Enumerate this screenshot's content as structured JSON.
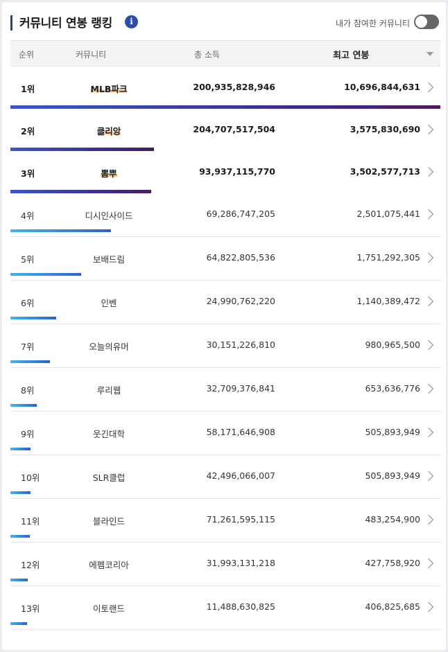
{
  "header": {
    "title": "커뮤니티 연봉 랭킹",
    "info_icon": "info-icon",
    "toggle_label": "내가 참여한 커뮤니티",
    "toggle_on": false
  },
  "table": {
    "columns": {
      "rank": "순위",
      "community": "커뮤니티",
      "total_income": "총 소득",
      "top_salary": "최고 연봉"
    },
    "rows": [
      {
        "rank": "1위",
        "community": "MLB파크",
        "total_income": "200,935,828,946",
        "top_salary": "10,696,844,631",
        "bar_fraction": 1.0
      },
      {
        "rank": "2위",
        "community": "클리앙",
        "total_income": "204,707,517,504",
        "top_salary": "3,575,830,690",
        "bar_fraction": 0.334
      },
      {
        "rank": "3위",
        "community": "뽐뿌",
        "total_income": "93,937,115,770",
        "top_salary": "3,502,577,713",
        "bar_fraction": 0.327
      },
      {
        "rank": "4위",
        "community": "디시인사이드",
        "total_income": "69,286,747,205",
        "top_salary": "2,501,075,441",
        "bar_fraction": 0.234
      },
      {
        "rank": "5위",
        "community": "보배드림",
        "total_income": "64,822,805,536",
        "top_salary": "1,751,292,305",
        "bar_fraction": 0.164
      },
      {
        "rank": "6위",
        "community": "인벤",
        "total_income": "24,990,762,220",
        "top_salary": "1,140,389,472",
        "bar_fraction": 0.107
      },
      {
        "rank": "7위",
        "community": "오늘의유머",
        "total_income": "30,151,226,810",
        "top_salary": "980,965,500",
        "bar_fraction": 0.092
      },
      {
        "rank": "8위",
        "community": "루리웹",
        "total_income": "32,709,376,841",
        "top_salary": "653,636,776",
        "bar_fraction": 0.061
      },
      {
        "rank": "9위",
        "community": "웃긴대학",
        "total_income": "58,171,646,908",
        "top_salary": "505,893,949",
        "bar_fraction": 0.047
      },
      {
        "rank": "10위",
        "community": "SLR클럽",
        "total_income": "42,496,066,007",
        "top_salary": "505,893,949",
        "bar_fraction": 0.047
      },
      {
        "rank": "11위",
        "community": "블라인드",
        "total_income": "71,261,595,115",
        "top_salary": "483,254,900",
        "bar_fraction": 0.045
      },
      {
        "rank": "12위",
        "community": "에펨코리아",
        "total_income": "31,993,131,218",
        "top_salary": "427,758,920",
        "bar_fraction": 0.04
      },
      {
        "rank": "13위",
        "community": "이토랜드",
        "total_income": "11,488,630,825",
        "top_salary": "406,825,685",
        "bar_fraction": 0.038
      }
    ]
  },
  "colors": {
    "accent": "#2a3f8f",
    "highlight": "#f7c987",
    "bar_gradient_start": "#3fb6ea",
    "bar_gradient_end": "#2d5fd6",
    "top_bar_end": "#4b1b5e"
  }
}
